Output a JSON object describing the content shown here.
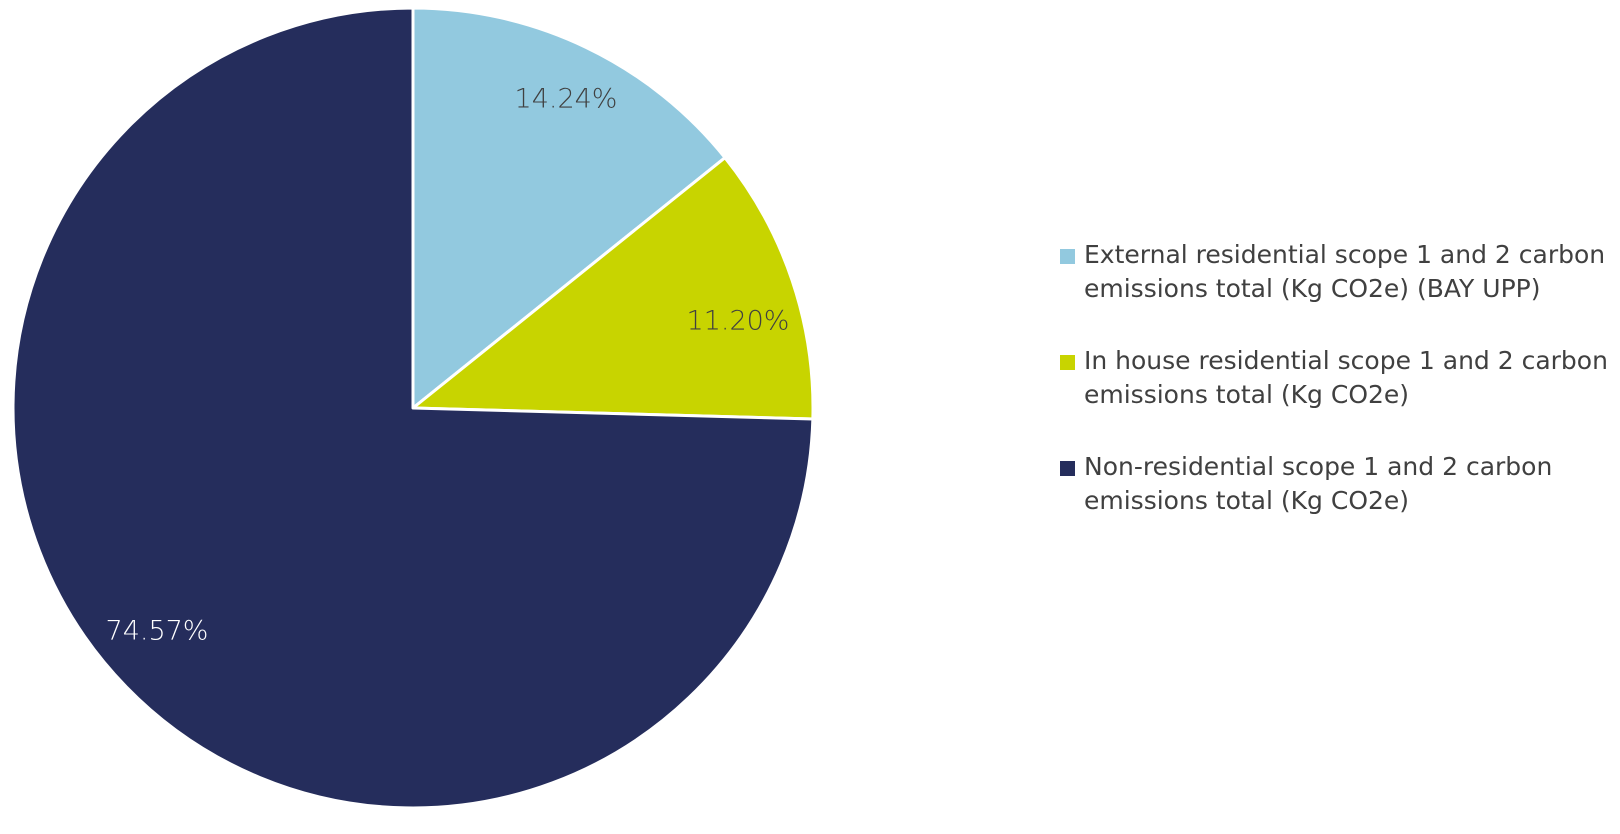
{
  "chart_data": {
    "type": "pie",
    "title": "",
    "start_angle_deg": 0,
    "direction": "clockwise",
    "legend_position": "right",
    "slices": [
      {
        "label": "External residential scope 1 and 2 carbon emissions total (Kg CO2e) (BAY UPP)",
        "value": 14.24,
        "value_label": "14.24%",
        "color": "#92C9DF"
      },
      {
        "label": "In house residential scope 1 and 2 carbon emissions total (Kg CO2e)",
        "value": 11.2,
        "value_label": "11.20%",
        "color": "#C8D400"
      },
      {
        "label": "Non-residential scope 1 and 2 carbon emissions total (Kg CO2e)",
        "value": 74.57,
        "value_label": "74.57%",
        "color": "#252D5C"
      }
    ],
    "label_color_light": "#FFFFFF",
    "label_color_dark": "#404040",
    "slice_border_color": "#FFFFFF"
  }
}
